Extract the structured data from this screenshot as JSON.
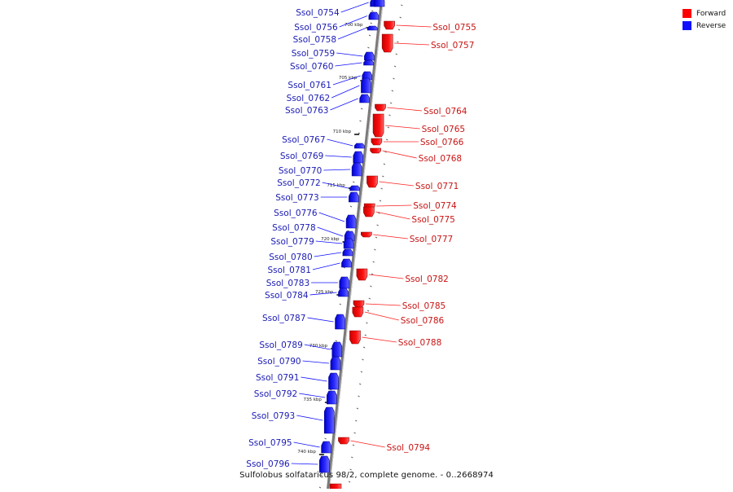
{
  "legend": {
    "forward_label": "Forward",
    "reverse_label": "Reverse",
    "forward_color": "#ff0000",
    "reverse_color": "#1010ff"
  },
  "caption": "Sulfolobus solfataricus 98/2, complete genome. - 0..2668974",
  "axis": {
    "ticks": [
      {
        "label": "700 kbp"
      },
      {
        "label": "705 kbp"
      },
      {
        "label": "710 kbp"
      },
      {
        "label": "715 kbp"
      },
      {
        "label": "720 kbp"
      },
      {
        "label": "725 kbp"
      },
      {
        "label": "730 kbp"
      },
      {
        "label": "735 kbp"
      },
      {
        "label": "740 kbp"
      }
    ]
  },
  "reverse_genes": [
    "Ssol_0754",
    "Ssol_0756",
    "Ssol_0758",
    "Ssol_0759",
    "Ssol_0760",
    "Ssol_0761",
    "Ssol_0762",
    "Ssol_0763",
    "Ssol_0767",
    "Ssol_0769",
    "Ssol_0770",
    "Ssol_0772",
    "Ssol_0773",
    "Ssol_0776",
    "Ssol_0778",
    "Ssol_0779",
    "Ssol_0780",
    "Ssol_0781",
    "Ssol_0783",
    "Ssol_0784",
    "Ssol_0787",
    "Ssol_0789",
    "Ssol_0790",
    "Ssol_0791",
    "Ssol_0792",
    "Ssol_0793",
    "Ssol_0795",
    "Ssol_0796"
  ],
  "forward_genes": [
    "Ssol_0755",
    "Ssol_0757",
    "Ssol_0764",
    "Ssol_0765",
    "Ssol_0766",
    "Ssol_0768",
    "Ssol_0771",
    "Ssol_0774",
    "Ssol_0775",
    "Ssol_0777",
    "Ssol_0782",
    "Ssol_0785",
    "Ssol_0786",
    "Ssol_0788",
    "Ssol_0794"
  ]
}
